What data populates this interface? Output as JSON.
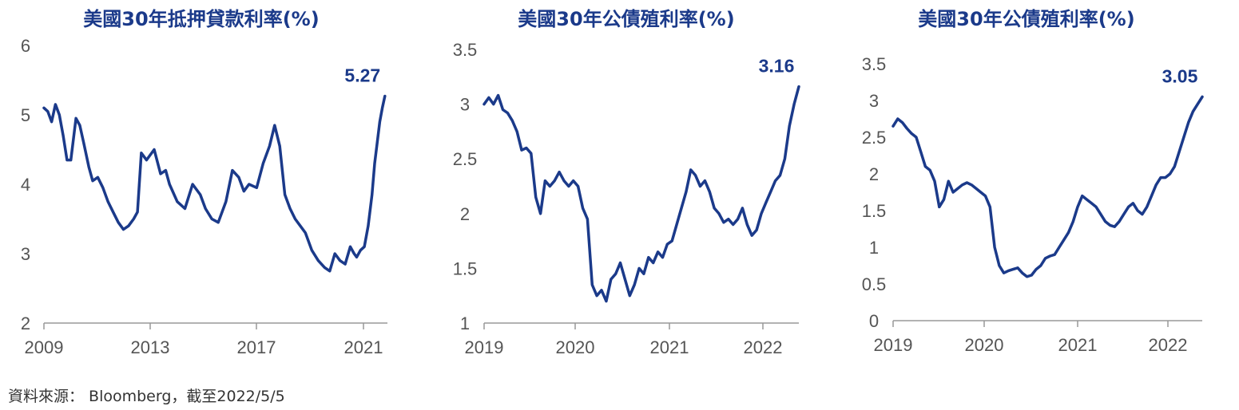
{
  "chart_data": [
    {
      "type": "line",
      "title": "美國30年抵押貸款利率(%)",
      "x_ticks": [
        "2009",
        "2013",
        "2017",
        "2021"
      ],
      "y_ticks": [
        "2",
        "3",
        "4",
        "5",
        "6"
      ],
      "ylim": [
        2,
        6
      ],
      "xlim": [
        2009,
        2022.4
      ],
      "end_label": "5.27",
      "series": [
        {
          "color": "#1b3a8a",
          "x": [
            2009.0,
            2009.15,
            2009.3,
            2009.45,
            2009.6,
            2009.75,
            2009.9,
            2010.05,
            2010.25,
            2010.4,
            2010.55,
            2010.75,
            2010.9,
            2011.1,
            2011.3,
            2011.5,
            2011.7,
            2011.9,
            2012.1,
            2012.3,
            2012.5,
            2012.65,
            2012.8,
            2013.0,
            2013.3,
            2013.55,
            2013.75,
            2013.9,
            2014.2,
            2014.5,
            2014.8,
            2015.1,
            2015.3,
            2015.55,
            2015.8,
            2016.1,
            2016.35,
            2016.6,
            2016.8,
            2017.0,
            2017.3,
            2017.55,
            2017.8,
            2018.0,
            2018.2,
            2018.4,
            2018.6,
            2018.8,
            2019.0,
            2019.2,
            2019.45,
            2019.7,
            2019.95,
            2020.15,
            2020.35,
            2020.55,
            2020.75,
            2020.95,
            2021.1,
            2021.2,
            2021.35,
            2021.5,
            2021.65,
            2021.8,
            2021.9,
            2022.0,
            2022.1,
            2022.2,
            2022.3
          ],
          "y": [
            5.1,
            5.05,
            4.9,
            5.15,
            5.0,
            4.7,
            4.35,
            4.35,
            4.95,
            4.85,
            4.6,
            4.25,
            4.05,
            4.1,
            3.95,
            3.75,
            3.6,
            3.45,
            3.35,
            3.4,
            3.5,
            3.6,
            4.45,
            4.35,
            4.5,
            4.15,
            4.2,
            4.0,
            3.75,
            3.65,
            4.0,
            3.85,
            3.65,
            3.5,
            3.45,
            3.75,
            4.2,
            4.1,
            3.9,
            4.0,
            3.95,
            4.3,
            4.55,
            4.85,
            4.55,
            3.85,
            3.65,
            3.5,
            3.4,
            3.3,
            3.05,
            2.9,
            2.8,
            2.75,
            3.0,
            2.9,
            2.85,
            3.1,
            3.0,
            2.95,
            3.05,
            3.1,
            3.4,
            3.85,
            4.3,
            4.6,
            4.9,
            5.1,
            5.27
          ]
        }
      ]
    },
    {
      "type": "line",
      "title": "美國30年公債殖利率(%)",
      "x_ticks": [
        "2019",
        "2020",
        "2021",
        "2022"
      ],
      "y_ticks": [
        "1",
        "1.5",
        "2",
        "2.5",
        "3",
        "3.5"
      ],
      "ylim": [
        1,
        3.5
      ],
      "xlim": [
        2019.0,
        2022.35
      ],
      "end_label": "3.16",
      "series": [
        {
          "color": "#1b3a8a",
          "x": [
            2019.0,
            2019.05,
            2019.1,
            2019.15,
            2019.2,
            2019.25,
            2019.3,
            2019.35,
            2019.4,
            2019.45,
            2019.5,
            2019.55,
            2019.6,
            2019.65,
            2019.7,
            2019.75,
            2019.8,
            2019.85,
            2019.9,
            2019.95,
            2020.0,
            2020.05,
            2020.1,
            2020.15,
            2020.2,
            2020.25,
            2020.3,
            2020.35,
            2020.4,
            2020.45,
            2020.5,
            2020.55,
            2020.6,
            2020.65,
            2020.7,
            2020.75,
            2020.8,
            2020.85,
            2020.9,
            2020.95,
            2021.0,
            2021.05,
            2021.1,
            2021.15,
            2021.2,
            2021.25,
            2021.3,
            2021.35,
            2021.4,
            2021.45,
            2021.5,
            2021.55,
            2021.6,
            2021.65,
            2021.7,
            2021.75,
            2021.8,
            2021.85,
            2021.9,
            2021.95,
            2022.0,
            2022.05,
            2022.1,
            2022.15,
            2022.2,
            2022.25,
            2022.3,
            2022.35
          ],
          "y": [
            3.0,
            3.06,
            3.0,
            3.08,
            2.95,
            2.92,
            2.85,
            2.75,
            2.58,
            2.6,
            2.55,
            2.15,
            2.0,
            2.3,
            2.25,
            2.3,
            2.38,
            2.3,
            2.25,
            2.3,
            2.25,
            2.05,
            1.95,
            1.35,
            1.25,
            1.3,
            1.2,
            1.4,
            1.45,
            1.55,
            1.4,
            1.25,
            1.35,
            1.5,
            1.45,
            1.6,
            1.55,
            1.65,
            1.6,
            1.72,
            1.75,
            1.9,
            2.05,
            2.2,
            2.4,
            2.35,
            2.25,
            2.3,
            2.2,
            2.05,
            2.0,
            1.92,
            1.95,
            1.9,
            1.95,
            2.05,
            1.9,
            1.8,
            1.85,
            2.0,
            2.1,
            2.2,
            2.3,
            2.35,
            2.5,
            2.8,
            3.0,
            3.16
          ]
        }
      ]
    },
    {
      "type": "line",
      "title": "美國30年公債殖利率(%)",
      "x_ticks": [
        "2019",
        "2020",
        "2021",
        "2022"
      ],
      "y_ticks": [
        "0",
        "0.5",
        "1",
        "1.5",
        "2",
        "2.5",
        "3",
        "3.5"
      ],
      "ylim": [
        0,
        3.5
      ],
      "xlim": [
        2019.0,
        2022.35
      ],
      "end_label": "3.05",
      "series": [
        {
          "color": "#1b3a8a",
          "x": [
            2019.0,
            2019.05,
            2019.1,
            2019.15,
            2019.2,
            2019.25,
            2019.3,
            2019.35,
            2019.4,
            2019.45,
            2019.5,
            2019.55,
            2019.6,
            2019.65,
            2019.7,
            2019.75,
            2019.8,
            2019.85,
            2019.9,
            2019.95,
            2020.0,
            2020.05,
            2020.1,
            2020.15,
            2020.2,
            2020.25,
            2020.3,
            2020.35,
            2020.4,
            2020.45,
            2020.5,
            2020.55,
            2020.6,
            2020.65,
            2020.7,
            2020.75,
            2020.8,
            2020.85,
            2020.9,
            2020.95,
            2021.0,
            2021.05,
            2021.1,
            2021.15,
            2021.2,
            2021.25,
            2021.3,
            2021.35,
            2021.4,
            2021.45,
            2021.5,
            2021.55,
            2021.6,
            2021.65,
            2021.7,
            2021.75,
            2021.8,
            2021.85,
            2021.9,
            2021.95,
            2022.0,
            2022.05,
            2022.1,
            2022.15,
            2022.2,
            2022.25,
            2022.3,
            2022.35
          ],
          "y": [
            2.65,
            2.75,
            2.7,
            2.62,
            2.55,
            2.5,
            2.3,
            2.1,
            2.05,
            1.9,
            1.55,
            1.65,
            1.9,
            1.75,
            1.8,
            1.85,
            1.88,
            1.85,
            1.8,
            1.75,
            1.7,
            1.55,
            1.0,
            0.75,
            0.65,
            0.68,
            0.7,
            0.72,
            0.65,
            0.6,
            0.62,
            0.7,
            0.75,
            0.85,
            0.88,
            0.9,
            1.0,
            1.1,
            1.2,
            1.35,
            1.55,
            1.7,
            1.65,
            1.6,
            1.55,
            1.45,
            1.35,
            1.3,
            1.28,
            1.35,
            1.45,
            1.55,
            1.6,
            1.5,
            1.45,
            1.55,
            1.7,
            1.85,
            1.95,
            1.95,
            2.0,
            2.1,
            2.3,
            2.5,
            2.7,
            2.85,
            2.95,
            3.05
          ]
        }
      ]
    }
  ],
  "footer": {
    "source": "資料來源： Bloomberg，截至2022/5/5"
  }
}
